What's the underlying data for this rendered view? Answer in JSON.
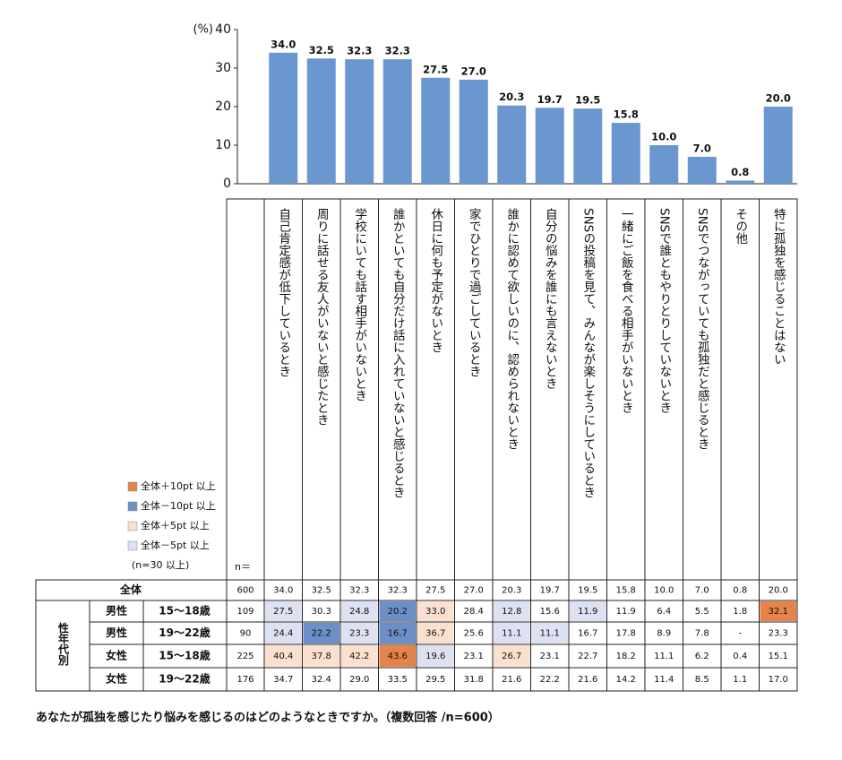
{
  "chart_data": {
    "type": "bar",
    "y_label": "(%)",
    "color": "#6a97d0",
    "ylim": [
      0,
      40
    ],
    "yticks": [
      0,
      10,
      20,
      30,
      40
    ],
    "categories": [
      "自己肯定感が低下しているとき",
      "周りに話せる友人がいないと感じたとき",
      "学校にいても話す相手がいないとき",
      "誰かといても自分だけ話に入れていないと感じるとき",
      "休日に何も予定がないとき",
      "家でひとりで過ごしているとき",
      "誰かに認めて欲しいのに、認められないとき",
      "自分の悩みを誰にも言えないとき",
      "SNSの投稿を見て、みんなが楽しそうにしているとき",
      "一緒にご飯を食べる相手がいないとき",
      "SNSで誰ともやりとりしていないとき",
      "SNSでつながっていても孤独だと感じるとき",
      "その他",
      "特に孤独を感じることはない"
    ],
    "values": [
      34.0,
      32.5,
      32.3,
      32.3,
      27.5,
      27.0,
      20.3,
      19.7,
      19.5,
      15.8,
      10.0,
      7.0,
      0.8,
      20.0
    ],
    "value_labels": [
      "34.0",
      "32.5",
      "32.3",
      "32.3",
      "27.5",
      "27.0",
      "20.3",
      "19.7",
      "19.5",
      "15.8",
      "10.0",
      "7.0",
      "0.8",
      "20.0"
    ]
  },
  "legend": [
    {
      "label": "全体＋10pt 以上",
      "color": "#e5834a"
    },
    {
      "label": "全体－10pt 以上",
      "color": "#6d8fc7"
    },
    {
      "label": "全体＋5pt 以上",
      "color": "#fbe0d0"
    },
    {
      "label": "全体－5pt 以上",
      "color": "#dde1f1"
    }
  ],
  "legend_note": "(n=30 以上)",
  "table": {
    "n_header": "n＝",
    "group_label": "性年代別",
    "total": {
      "label": "全体",
      "n": "600",
      "values": [
        "34.0",
        "32.5",
        "32.3",
        "32.3",
        "27.5",
        "27.0",
        "20.3",
        "19.7",
        "19.5",
        "15.8",
        "10.0",
        "7.0",
        "0.8",
        "20.0"
      ]
    },
    "rows": [
      {
        "gender": "男性",
        "age": "15～18歳",
        "n": "109",
        "values": [
          "27.5",
          "30.3",
          "24.8",
          "20.2",
          "33.0",
          "28.4",
          "12.8",
          "15.6",
          "11.9",
          "11.9",
          "6.4",
          "5.5",
          "1.8",
          "32.1"
        ],
        "highlight": [
          3,
          null,
          3,
          1,
          2,
          null,
          3,
          null,
          3,
          null,
          null,
          null,
          null,
          0
        ]
      },
      {
        "gender": "男性",
        "age": "19～22歳",
        "n": "90",
        "values": [
          "24.4",
          "22.2",
          "23.3",
          "16.7",
          "36.7",
          "25.6",
          "11.1",
          "11.1",
          "16.7",
          "17.8",
          "8.9",
          "7.8",
          "-",
          "23.3"
        ],
        "highlight": [
          3,
          1,
          3,
          1,
          2,
          null,
          3,
          3,
          null,
          null,
          null,
          null,
          null,
          null
        ]
      },
      {
        "gender": "女性",
        "age": "15～18歳",
        "n": "225",
        "values": [
          "40.4",
          "37.8",
          "42.2",
          "43.6",
          "19.6",
          "23.1",
          "26.7",
          "23.1",
          "22.7",
          "18.2",
          "11.1",
          "6.2",
          "0.4",
          "15.1"
        ],
        "highlight": [
          2,
          2,
          2,
          0,
          3,
          null,
          2,
          null,
          null,
          null,
          null,
          null,
          null,
          null
        ]
      },
      {
        "gender": "女性",
        "age": "19～22歳",
        "n": "176",
        "values": [
          "34.7",
          "32.4",
          "29.0",
          "33.5",
          "29.5",
          "31.8",
          "21.6",
          "22.2",
          "21.6",
          "14.2",
          "11.4",
          "8.5",
          "1.1",
          "17.0"
        ],
        "highlight": [
          null,
          null,
          null,
          null,
          null,
          null,
          null,
          null,
          null,
          null,
          null,
          null,
          null,
          null
        ]
      }
    ]
  },
  "footnote": "あなたが孤独を感じたり悩みを感じるのはどのようなときですか。（複数回答 /n=600）"
}
